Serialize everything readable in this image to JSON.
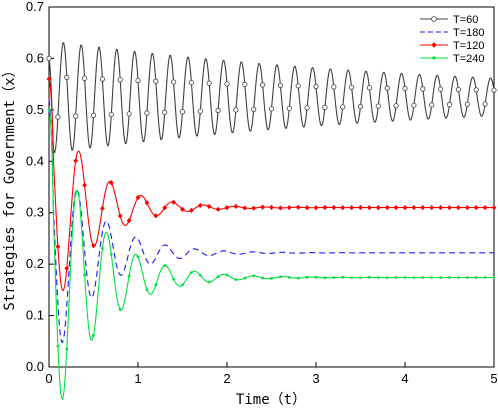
{
  "chart_data": {
    "type": "line",
    "xlabel": "Time（t）",
    "ylabel": "Strategies for Government（x）",
    "xlim": [
      0,
      5
    ],
    "ylim": [
      0,
      0.7
    ],
    "xticks": [
      "0",
      "1",
      "2",
      "3",
      "4",
      "5"
    ],
    "yticks": [
      "0.0",
      "0.1",
      "0.2",
      "0.3",
      "0.4",
      "0.5",
      "0.6",
      "0.7"
    ],
    "grid": false,
    "legend_position": "top-right",
    "series": [
      {
        "name": "T=60",
        "color": "#404040",
        "line_style": "solid",
        "marker": "open-circle",
        "equilibrium": 0.525,
        "start": 0.6,
        "amplitude": 0.11,
        "decay": 0.22,
        "period": 0.2,
        "phase": 1.2
      },
      {
        "name": "T=180",
        "color": "#1a1aff",
        "line_style": "dashed",
        "marker": "none",
        "equilibrium": 0.222,
        "start": 0.52,
        "amplitude": 0.24,
        "decay": 2.1,
        "period": 0.33,
        "phase": 0.2
      },
      {
        "name": "T=120",
        "color": "#ff0000",
        "line_style": "solid",
        "marker": "filled-diamond",
        "equilibrium": 0.31,
        "start": 0.56,
        "amplitude": 0.23,
        "decay": 2.2,
        "period": 0.35,
        "phase": 0.2
      },
      {
        "name": "T=240",
        "color": "#00e040",
        "line_style": "solid",
        "marker": "small-dot",
        "equilibrium": 0.174,
        "start": 0.5,
        "amplitude": 0.32,
        "decay": 2.0,
        "period": 0.33,
        "phase": 0.2
      }
    ]
  }
}
